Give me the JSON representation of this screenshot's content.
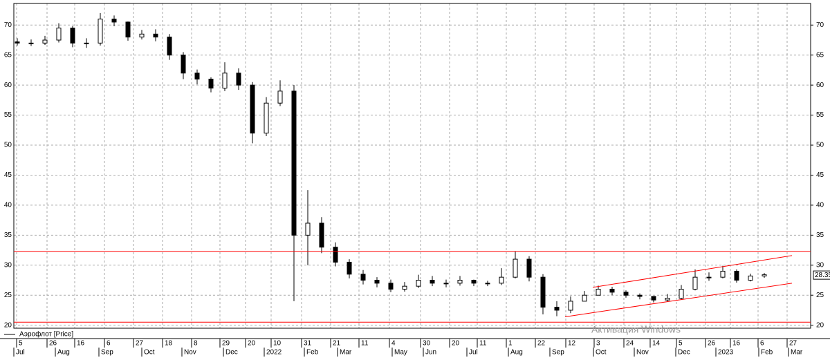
{
  "chart_data": {
    "type": "candlestick",
    "legend": "Аэрофлот [Price]",
    "xlim": [
      0,
      576
    ],
    "ylim": [
      19.5,
      73.6
    ],
    "yticks": [
      20,
      25,
      30,
      35,
      40,
      45,
      50,
      55,
      60,
      65,
      70
    ],
    "xticks": [
      {
        "value": 2,
        "label": "5"
      },
      {
        "value": 24,
        "label": "26"
      },
      {
        "value": 44,
        "label": "16"
      },
      {
        "value": 65.5,
        "label": "6"
      },
      {
        "value": 86.5,
        "label": "27"
      },
      {
        "value": 107.5,
        "label": "18"
      },
      {
        "value": 128.5,
        "label": "8"
      },
      {
        "value": 149,
        "label": "29"
      },
      {
        "value": 167.5,
        "label": "20"
      },
      {
        "value": 186,
        "label": "10"
      },
      {
        "value": 208,
        "label": "31"
      },
      {
        "value": 229,
        "label": "21"
      },
      {
        "value": 249.5,
        "label": "11"
      },
      {
        "value": 271.5,
        "label": "4"
      },
      {
        "value": 294,
        "label": "30"
      },
      {
        "value": 315,
        "label": "20"
      },
      {
        "value": 335,
        "label": "11"
      },
      {
        "value": 356,
        "label": "1"
      },
      {
        "value": 377,
        "label": "22"
      },
      {
        "value": 399,
        "label": "12"
      },
      {
        "value": 419.5,
        "label": "3"
      },
      {
        "value": 441,
        "label": "24"
      },
      {
        "value": 460,
        "label": "14"
      },
      {
        "value": 479,
        "label": "5"
      },
      {
        "value": 500,
        "label": "26"
      },
      {
        "value": 518,
        "label": "16"
      },
      {
        "value": 538,
        "label": "6"
      },
      {
        "value": 559,
        "label": "27"
      }
    ],
    "xticks_major": [
      {
        "value": 0,
        "label": "Jul"
      },
      {
        "value": 30,
        "label": "Aug"
      },
      {
        "value": 61.5,
        "label": "Sep"
      },
      {
        "value": 92.5,
        "label": "Oct"
      },
      {
        "value": 121.5,
        "label": "Nov"
      },
      {
        "value": 151.5,
        "label": "Dec"
      },
      {
        "value": 181,
        "label": "2022"
      },
      {
        "value": 210,
        "label": "Feb"
      },
      {
        "value": 234,
        "label": "Mar"
      },
      {
        "value": 273.5,
        "label": "May"
      },
      {
        "value": 296,
        "label": "Jun"
      },
      {
        "value": 327.5,
        "label": "Jul"
      },
      {
        "value": 357.5,
        "label": "Aug"
      },
      {
        "value": 387.5,
        "label": "Sep"
      },
      {
        "value": 419,
        "label": "Oct"
      },
      {
        "value": 448.5,
        "label": "Nov"
      },
      {
        "value": 478.5,
        "label": "Dec"
      },
      {
        "value": 507.5,
        "label": "2023"
      },
      {
        "value": 538.5,
        "label": "Feb"
      },
      {
        "value": 560,
        "label": "Mar"
      }
    ],
    "x": [
      2.5,
      12.5,
      22.5,
      32.5,
      42.5,
      52.5,
      62.5,
      72.5,
      82.5,
      92.5,
      102.5,
      112.5,
      122.5,
      132.5,
      142.5,
      152.5,
      162.5,
      172.5,
      182.5,
      192.5,
      202.5,
      212.5,
      222.5,
      232.5,
      242.5,
      252.5,
      262.5,
      272.5,
      282.5,
      292.5,
      302.5,
      312.5,
      322.5,
      332.5,
      342.5,
      352.5,
      362.5,
      372.5,
      382.5,
      392.5,
      402.5,
      412.5,
      422.5,
      432.5,
      442.5,
      452.5,
      462.5,
      472.5,
      482.5,
      492.5,
      502.5,
      512.5,
      522.5,
      532.5,
      542.5
    ],
    "open": [
      67.2,
      67,
      67,
      67.5,
      69.5,
      67,
      67,
      71,
      70.5,
      68,
      68.5,
      68,
      65,
      62,
      61,
      59.5,
      62,
      60,
      52,
      57,
      59,
      35,
      37,
      33,
      30.5,
      28.5,
      27.5,
      27,
      26,
      26.5,
      27.5,
      27,
      27,
      27.5,
      27,
      27,
      28,
      31,
      28,
      23,
      22.5,
      24,
      25,
      26,
      25.5,
      25,
      24.8,
      24.2,
      24.5,
      26,
      28,
      28,
      29,
      27.5,
      28.2
    ],
    "high": [
      67.8,
      67.6,
      68.2,
      70.3,
      69.8,
      67.8,
      72,
      71.6,
      70.6,
      69.2,
      69.3,
      68.5,
      65.5,
      62.6,
      61.3,
      63.8,
      62.8,
      60.5,
      58,
      60.8,
      60,
      42.5,
      38,
      33.8,
      31,
      29.2,
      28,
      27.6,
      27.2,
      28.4,
      28.2,
      27.6,
      28.2,
      27.6,
      27.4,
      29.5,
      32.3,
      31.5,
      28.5,
      24,
      24.8,
      25.7,
      26.6,
      26.4,
      25.8,
      25.3,
      24.8,
      25.2,
      26.7,
      29.3,
      28.8,
      29.9,
      29.3,
      28.6,
      28.7
    ],
    "low": [
      66.6,
      66.5,
      66.7,
      67.1,
      66.3,
      66.2,
      66.6,
      69.8,
      67.4,
      67.6,
      67.3,
      64.2,
      61,
      60.1,
      58.8,
      59,
      59.2,
      50.3,
      51.5,
      56.5,
      24,
      30,
      32,
      29.8,
      27.8,
      26.8,
      26.3,
      25.5,
      25.6,
      26.2,
      26.5,
      26.3,
      26.6,
      26.5,
      26.5,
      26.7,
      27.8,
      27.3,
      21.8,
      21.5,
      22,
      24,
      25.2,
      25,
      24.6,
      24.3,
      23.8,
      23.9,
      24.3,
      25.8,
      27.4,
      27.8,
      27.1,
      27.3,
      27.9
    ],
    "close": [
      67,
      67,
      67.5,
      69.5,
      67,
      67,
      71,
      70.5,
      68,
      68.5,
      68,
      65,
      62,
      61,
      59.5,
      62,
      60,
      52,
      57,
      59,
      35,
      37,
      33,
      30.5,
      28.5,
      27.5,
      27,
      26,
      26.5,
      27.5,
      27,
      27,
      27.5,
      27,
      27,
      28,
      31,
      28,
      23,
      22.5,
      24,
      25,
      26,
      25.5,
      25,
      24.8,
      24.2,
      24.5,
      26,
      28,
      28,
      29,
      27.5,
      28.2,
      28.4
    ],
    "color": "#000000",
    "hlines": [
      32.3,
      20.5
    ],
    "line_color": "#ff0000",
    "trend_lines": [
      {
        "x": [
          418.5,
          562.5
        ],
        "y": [
          26.3,
          31.6
        ]
      },
      {
        "x": [
          398.5,
          562.5
        ],
        "y": [
          21.4,
          27.0
        ]
      }
    ],
    "last_price": 28.35,
    "watermark": "Активация Windows"
  }
}
